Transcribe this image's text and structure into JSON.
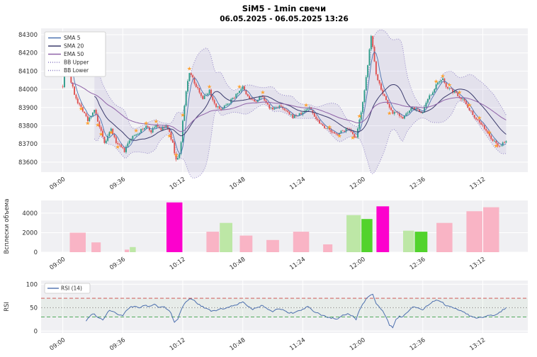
{
  "title": "SiM5 - 1min свечи",
  "subtitle": "06.05.2025 - 06.05.2025 13:26",
  "colors": {
    "panel_bg": "#f0f0f3",
    "grid": "#ffffff",
    "up": "#2e9c8a",
    "down": "#df5050",
    "sma5": "#4c72b0",
    "sma20": "#3b3b6d",
    "ema50": "#8f63a8",
    "bb": "#8a7bc2",
    "bb_fill": "rgba(138,123,194,0.13)",
    "rsi": "#4c6fae",
    "marker": "#ffa02e",
    "overbought": "#cc4444",
    "oversold": "#3da04a",
    "mid": "#999999",
    "volume_colors": {
      "pink": "#f9b4c5",
      "palegreen": "#bde7a6",
      "green": "#52d32c",
      "magenta": "#fc01cd"
    }
  },
  "axis": {
    "xticks": [
      {
        "m": 0,
        "label": "09:00"
      },
      {
        "m": 36,
        "label": "09:36"
      },
      {
        "m": 72,
        "label": "10:12"
      },
      {
        "m": 108,
        "label": "10:48"
      },
      {
        "m": 144,
        "label": "11:24"
      },
      {
        "m": 180,
        "label": "12:00"
      },
      {
        "m": 216,
        "label": "12:36"
      },
      {
        "m": 252,
        "label": "13:12"
      }
    ]
  },
  "legend": {
    "main": [
      "SMA 5",
      "SMA 20",
      "EMA 50",
      "BB Upper",
      "BB Lower"
    ],
    "rsi": {
      "label": "RSI (14)"
    }
  },
  "chart_data": [
    {
      "type": "candlestick",
      "symbol": "SiM5",
      "interval": "1min",
      "x_unit": "minutes_since_09:00",
      "x_range_minutes": [
        0,
        266
      ],
      "ylim": [
        83545,
        84335
      ],
      "yticks": [
        83600,
        83700,
        83800,
        83900,
        84000,
        84100,
        84200,
        84300
      ],
      "overlays": [
        "SMA 5",
        "SMA 20",
        "EMA 50",
        "BB Upper",
        "BB Lower"
      ],
      "price_keypoints": [
        [
          0,
          84020
        ],
        [
          1,
          84180
        ],
        [
          2,
          84255
        ],
        [
          3,
          84120
        ],
        [
          5,
          84040
        ],
        [
          7,
          83975
        ],
        [
          9,
          83930
        ],
        [
          11,
          83900
        ],
        [
          13,
          83870
        ],
        [
          15,
          83825
        ],
        [
          17,
          83860
        ],
        [
          19,
          83890
        ],
        [
          21,
          83820
        ],
        [
          23,
          83765
        ],
        [
          25,
          83700
        ],
        [
          27,
          83740
        ],
        [
          29,
          83780
        ],
        [
          31,
          83730
        ],
        [
          33,
          83695
        ],
        [
          35,
          83680
        ],
        [
          37,
          83660
        ],
        [
          39,
          83700
        ],
        [
          41,
          83730
        ],
        [
          44,
          83755
        ],
        [
          47,
          83775
        ],
        [
          50,
          83795
        ],
        [
          53,
          83770
        ],
        [
          56,
          83805
        ],
        [
          59,
          83780
        ],
        [
          62,
          83800
        ],
        [
          64,
          83760
        ],
        [
          66,
          83700
        ],
        [
          68,
          83610
        ],
        [
          70,
          83645
        ],
        [
          71,
          83705
        ],
        [
          72,
          83825
        ],
        [
          73,
          83905
        ],
        [
          74,
          83985
        ],
        [
          75,
          84045
        ],
        [
          76,
          84095
        ],
        [
          78,
          84060
        ],
        [
          80,
          84010
        ],
        [
          82,
          83990
        ],
        [
          84,
          83950
        ],
        [
          86,
          83970
        ],
        [
          88,
          83995
        ],
        [
          90,
          83940
        ],
        [
          92,
          83910
        ],
        [
          94,
          83890
        ],
        [
          96,
          83900
        ],
        [
          98,
          83920
        ],
        [
          100,
          83930
        ],
        [
          102,
          83950
        ],
        [
          104,
          83970
        ],
        [
          106,
          83995
        ],
        [
          108,
          84010
        ],
        [
          110,
          83970
        ],
        [
          112,
          83950
        ],
        [
          114,
          83940
        ],
        [
          116,
          83930
        ],
        [
          118,
          83950
        ],
        [
          120,
          83965
        ],
        [
          122,
          83920
        ],
        [
          124,
          83900
        ],
        [
          126,
          83890
        ],
        [
          128,
          83900
        ],
        [
          130,
          83910
        ],
        [
          132,
          83890
        ],
        [
          134,
          83880
        ],
        [
          136,
          83860
        ],
        [
          138,
          83850
        ],
        [
          141,
          83858
        ],
        [
          144,
          83870
        ],
        [
          146,
          83890
        ],
        [
          148,
          83900
        ],
        [
          150,
          83870
        ],
        [
          152,
          83840
        ],
        [
          154,
          83820
        ],
        [
          156,
          83800
        ],
        [
          158,
          83790
        ],
        [
          160,
          83775
        ],
        [
          162,
          83760
        ],
        [
          164,
          83750
        ],
        [
          166,
          83762
        ],
        [
          168,
          83770
        ],
        [
          170,
          83780
        ],
        [
          172,
          83770
        ],
        [
          174,
          83748
        ],
        [
          176,
          83728
        ],
        [
          177,
          83780
        ],
        [
          178,
          83830
        ],
        [
          179,
          83880
        ],
        [
          180,
          83935
        ],
        [
          181,
          83990
        ],
        [
          182,
          84060
        ],
        [
          183,
          84130
        ],
        [
          184,
          84220
        ],
        [
          185,
          84290
        ],
        [
          186,
          84240
        ],
        [
          187,
          84160
        ],
        [
          188,
          84080
        ],
        [
          190,
          84030
        ],
        [
          192,
          83980
        ],
        [
          194,
          83940
        ],
        [
          196,
          83900
        ],
        [
          198,
          83868
        ],
        [
          200,
          83880
        ],
        [
          202,
          83860
        ],
        [
          204,
          83840
        ],
        [
          206,
          83862
        ],
        [
          208,
          83880
        ],
        [
          210,
          83900
        ],
        [
          212,
          83890
        ],
        [
          214,
          83880
        ],
        [
          216,
          83872
        ],
        [
          218,
          83920
        ],
        [
          220,
          83960
        ],
        [
          222,
          83990
        ],
        [
          224,
          84020
        ],
        [
          226,
          84040
        ],
        [
          228,
          84052
        ],
        [
          230,
          84020
        ],
        [
          232,
          84000
        ],
        [
          234,
          83990
        ],
        [
          236,
          83978
        ],
        [
          238,
          83960
        ],
        [
          240,
          83948
        ],
        [
          242,
          83920
        ],
        [
          244,
          83890
        ],
        [
          246,
          83862
        ],
        [
          248,
          83840
        ],
        [
          250,
          83820
        ],
        [
          252,
          83800
        ],
        [
          254,
          83770
        ],
        [
          256,
          83740
        ],
        [
          258,
          83720
        ],
        [
          260,
          83700
        ],
        [
          262,
          83690
        ],
        [
          264,
          83700
        ],
        [
          266,
          83712
        ]
      ],
      "markers": [
        [
          11,
          83895
        ],
        [
          15,
          83815
        ],
        [
          21,
          83805
        ],
        [
          23,
          83755
        ],
        [
          29,
          83765
        ],
        [
          33,
          83685
        ],
        [
          44,
          83775
        ],
        [
          50,
          83815
        ],
        [
          56,
          83825
        ],
        [
          64,
          83745
        ],
        [
          68,
          83640
        ],
        [
          72,
          83860
        ],
        [
          76,
          84115
        ],
        [
          88,
          84015
        ],
        [
          106,
          84015
        ],
        [
          120,
          83985
        ],
        [
          146,
          83915
        ],
        [
          160,
          83795
        ],
        [
          166,
          83745
        ],
        [
          174,
          83735
        ],
        [
          178,
          83855
        ],
        [
          196,
          83870
        ],
        [
          224,
          84045
        ],
        [
          228,
          84075
        ],
        [
          232,
          84025
        ],
        [
          238,
          83985
        ],
        [
          244,
          83915
        ],
        [
          250,
          83845
        ],
        [
          256,
          83765
        ],
        [
          260,
          83690
        ]
      ]
    },
    {
      "type": "bar",
      "ylabel": "Всплески объема",
      "yticks": [
        0,
        2000,
        4000
      ],
      "ylim": [
        0,
        5300
      ],
      "bars": [
        [
          4,
          14,
          2000,
          "pink"
        ],
        [
          17,
          23,
          1000,
          "pink"
        ],
        [
          37,
          40,
          260,
          "pink"
        ],
        [
          40,
          44,
          520,
          "palegreen"
        ],
        [
          62,
          72,
          5100,
          "magenta"
        ],
        [
          86,
          94,
          2100,
          "pink"
        ],
        [
          94,
          102,
          3000,
          "palegreen"
        ],
        [
          106,
          114,
          1700,
          "pink"
        ],
        [
          122,
          130,
          1250,
          "pink"
        ],
        [
          138,
          148,
          2100,
          "pink"
        ],
        [
          156,
          162,
          800,
          "pink"
        ],
        [
          170,
          179,
          3800,
          "palegreen"
        ],
        [
          179,
          186,
          3400,
          "green"
        ],
        [
          188,
          196,
          4700,
          "magenta"
        ],
        [
          204,
          211,
          2200,
          "palegreen"
        ],
        [
          211,
          219,
          2100,
          "green"
        ],
        [
          224,
          234,
          3000,
          "pink"
        ],
        [
          242,
          252,
          4200,
          "pink"
        ],
        [
          252,
          262,
          4600,
          "pink"
        ]
      ]
    },
    {
      "type": "line",
      "name": "RSI (14)",
      "ylabel": "RSI",
      "yticks": [
        0,
        50,
        100
      ],
      "ylim": [
        0,
        100
      ],
      "levels": {
        "overbought": 70,
        "midline": 50,
        "oversold": 30
      },
      "keypoints": [
        [
          14,
          22
        ],
        [
          16,
          30
        ],
        [
          18,
          38
        ],
        [
          20,
          33
        ],
        [
          22,
          28
        ],
        [
          24,
          24
        ],
        [
          26,
          35
        ],
        [
          28,
          45
        ],
        [
          30,
          42
        ],
        [
          32,
          38
        ],
        [
          34,
          34
        ],
        [
          36,
          33
        ],
        [
          38,
          42
        ],
        [
          40,
          50
        ],
        [
          43,
          53
        ],
        [
          46,
          50
        ],
        [
          49,
          55
        ],
        [
          52,
          52
        ],
        [
          55,
          57
        ],
        [
          58,
          50
        ],
        [
          61,
          53
        ],
        [
          63,
          45
        ],
        [
          65,
          38
        ],
        [
          67,
          18
        ],
        [
          69,
          25
        ],
        [
          71,
          45
        ],
        [
          73,
          58
        ],
        [
          75,
          66
        ],
        [
          77,
          70
        ],
        [
          79,
          65
        ],
        [
          81,
          58
        ],
        [
          84,
          52
        ],
        [
          87,
          47
        ],
        [
          90,
          42
        ],
        [
          93,
          45
        ],
        [
          96,
          48
        ],
        [
          99,
          50
        ],
        [
          102,
          54
        ],
        [
          105,
          58
        ],
        [
          108,
          62
        ],
        [
          111,
          52
        ],
        [
          114,
          47
        ],
        [
          117,
          50
        ],
        [
          120,
          55
        ],
        [
          123,
          47
        ],
        [
          126,
          42
        ],
        [
          129,
          48
        ],
        [
          132,
          45
        ],
        [
          135,
          40
        ],
        [
          138,
          38
        ],
        [
          141,
          42
        ],
        [
          144,
          46
        ],
        [
          147,
          52
        ],
        [
          150,
          43
        ],
        [
          153,
          38
        ],
        [
          156,
          33
        ],
        [
          159,
          30
        ],
        [
          162,
          27
        ],
        [
          165,
          25
        ],
        [
          168,
          33
        ],
        [
          171,
          38
        ],
        [
          174,
          32
        ],
        [
          176,
          25
        ],
        [
          178,
          45
        ],
        [
          180,
          58
        ],
        [
          182,
          68
        ],
        [
          184,
          76
        ],
        [
          186,
          80
        ],
        [
          188,
          60
        ],
        [
          190,
          50
        ],
        [
          192,
          42
        ],
        [
          194,
          30
        ],
        [
          196,
          12
        ],
        [
          198,
          8
        ],
        [
          200,
          25
        ],
        [
          202,
          32
        ],
        [
          204,
          30
        ],
        [
          206,
          38
        ],
        [
          208,
          45
        ],
        [
          210,
          52
        ],
        [
          212,
          50
        ],
        [
          214,
          47
        ],
        [
          216,
          45
        ],
        [
          218,
          52
        ],
        [
          220,
          58
        ],
        [
          222,
          62
        ],
        [
          224,
          66
        ],
        [
          226,
          63
        ],
        [
          228,
          60
        ],
        [
          230,
          55
        ],
        [
          232,
          52
        ],
        [
          234,
          50
        ],
        [
          236,
          48
        ],
        [
          238,
          45
        ],
        [
          240,
          42
        ],
        [
          242,
          38
        ],
        [
          244,
          33
        ],
        [
          246,
          30
        ],
        [
          248,
          28
        ],
        [
          250,
          30
        ],
        [
          252,
          28
        ],
        [
          254,
          32
        ],
        [
          256,
          35
        ],
        [
          258,
          33
        ],
        [
          260,
          36
        ],
        [
          262,
          40
        ],
        [
          264,
          45
        ],
        [
          266,
          50
        ]
      ]
    }
  ]
}
